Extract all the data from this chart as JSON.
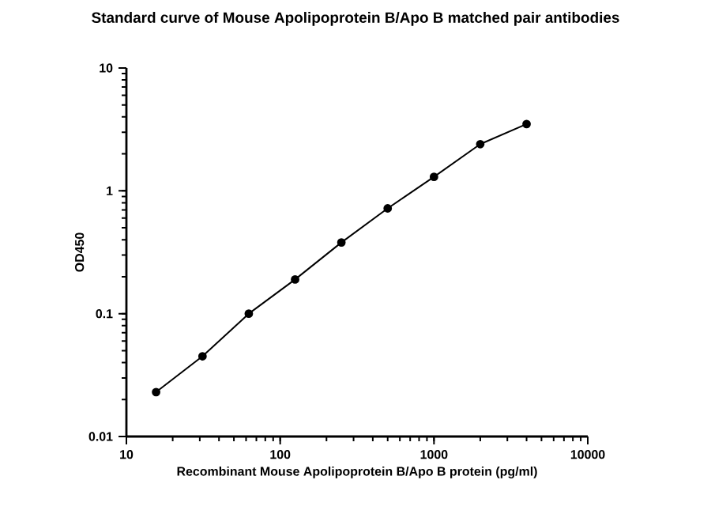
{
  "chart_data": {
    "type": "line",
    "title": "Standard curve of Mouse Apolipoprotein B/Apo B matched pair antibodies",
    "xlabel": "Recombinant Mouse Apolipoprotein B/Apo B protein (pg/ml)",
    "ylabel": "OD450",
    "log": "xy",
    "marker": "circle",
    "line_style": "solid",
    "x": [
      15.6,
      31.25,
      62.5,
      125,
      250,
      500,
      1000,
      2000,
      4000
    ],
    "series": [
      {
        "color": "#000000",
        "values": [
          0.023,
          0.045,
          0.1,
          0.19,
          0.38,
          0.72,
          1.3,
          2.4,
          3.5
        ]
      }
    ],
    "xlim": [
      10,
      10000
    ],
    "xticks": [
      10,
      100,
      1000,
      10000
    ],
    "ylim": [
      0.01,
      10
    ],
    "yticks": [
      0.01,
      0.1,
      1,
      10
    ]
  }
}
